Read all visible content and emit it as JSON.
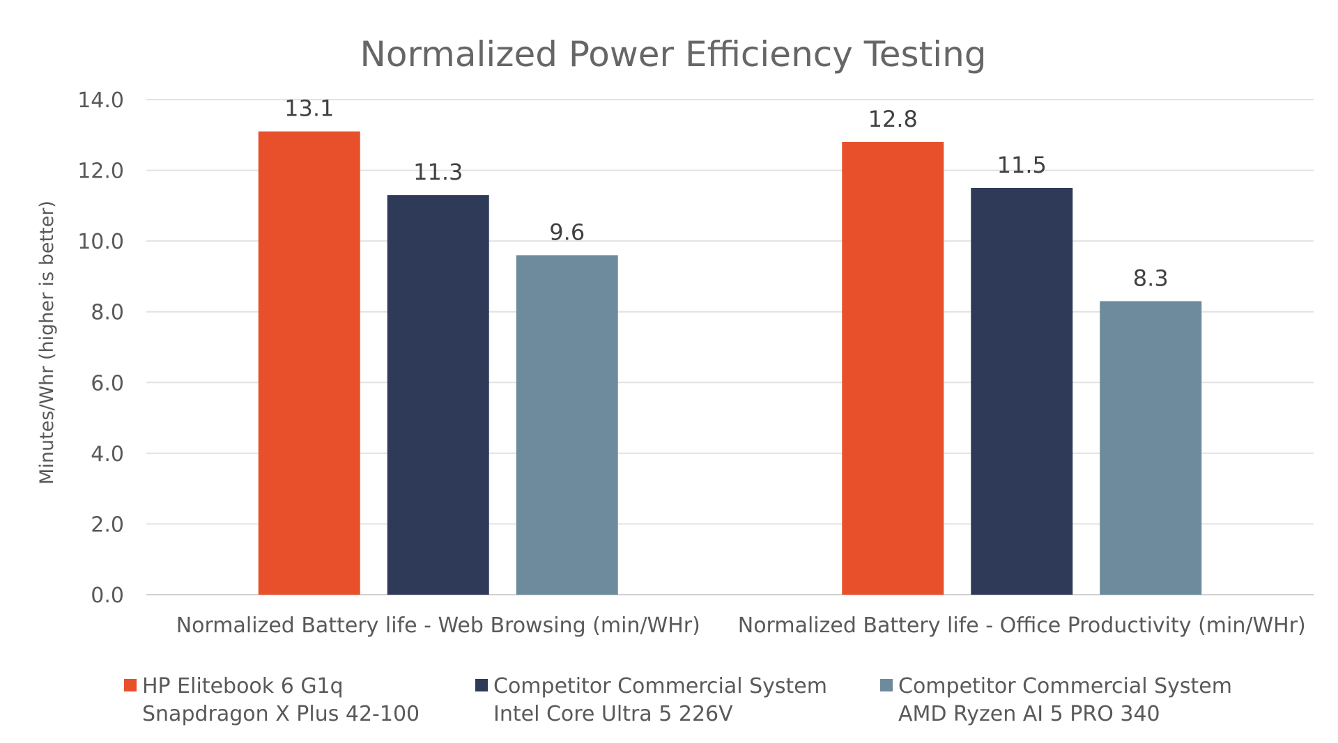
{
  "chart_data": {
    "type": "bar",
    "title": "Normalized Power Efficiency Testing",
    "xlabel": "",
    "ylabel": "Minutes/Whr (higher is better)",
    "ylim": [
      0,
      14
    ],
    "yticks": [
      "0.0",
      "2.0",
      "4.0",
      "6.0",
      "8.0",
      "10.0",
      "12.0",
      "14.0"
    ],
    "grid": true,
    "legend_position": "bottom",
    "categories": [
      "Normalized Battery life - Web Browsing (min/WHr)",
      "Normalized Battery life - Office Productivity (min/WHr)"
    ],
    "series": [
      {
        "name_lines": [
          "HP Elitebook 6 G1q",
          "Snapdragon X Plus 42-100"
        ],
        "color": "#E8502C",
        "values": [
          13.1,
          12.8
        ],
        "labels": [
          "13.1",
          "12.8"
        ]
      },
      {
        "name_lines": [
          "Competitor Commercial System",
          "Intel Core Ultra 5 226V"
        ],
        "color": "#2F3A58",
        "values": [
          11.3,
          11.5
        ],
        "labels": [
          "11.3",
          "11.5"
        ]
      },
      {
        "name_lines": [
          "Competitor Commercial System",
          "AMD Ryzen AI 5 PRO 340"
        ],
        "color": "#6D8B9C",
        "values": [
          9.6,
          8.3
        ],
        "labels": [
          "9.6",
          "8.3"
        ]
      }
    ]
  }
}
